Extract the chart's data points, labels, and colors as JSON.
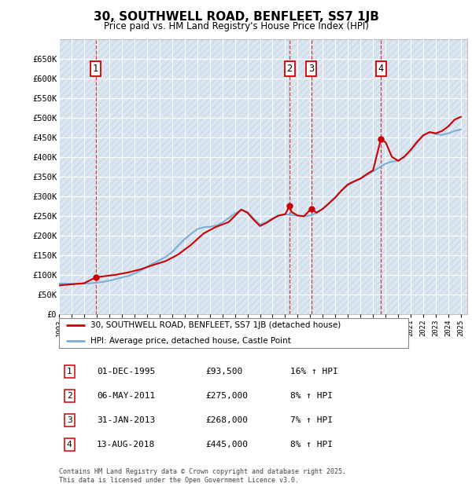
{
  "title": "30, SOUTHWELL ROAD, BENFLEET, SS7 1JB",
  "subtitle": "Price paid vs. HM Land Registry's House Price Index (HPI)",
  "ylim": [
    0,
    700000
  ],
  "yticks": [
    0,
    50000,
    100000,
    150000,
    200000,
    250000,
    300000,
    350000,
    400000,
    450000,
    500000,
    550000,
    600000,
    650000
  ],
  "ytick_labels": [
    "£0",
    "£50K",
    "£100K",
    "£150K",
    "£200K",
    "£250K",
    "£300K",
    "£350K",
    "£400K",
    "£450K",
    "£500K",
    "£550K",
    "£600K",
    "£650K"
  ],
  "background_color": "#dce6f0",
  "hatch_color": "#c8d8e8",
  "grid_color": "#ffffff",
  "sale_line_color": "#cc0000",
  "hpi_line_color": "#7bafd4",
  "sale_marker_color": "#cc0000",
  "transaction_color": "#cc0000",
  "annotations": [
    {
      "num": 1,
      "x_year": 1995.92,
      "y": 93500,
      "label": "1",
      "date": "01-DEC-1995",
      "price": "£93,500",
      "hpi": "16% ↑ HPI"
    },
    {
      "num": 2,
      "x_year": 2011.35,
      "y": 275000,
      "label": "2",
      "date": "06-MAY-2011",
      "price": "£275,000",
      "hpi": "8% ↑ HPI"
    },
    {
      "num": 3,
      "x_year": 2013.08,
      "y": 268000,
      "label": "3",
      "date": "31-JAN-2013",
      "price": "£268,000",
      "hpi": "7% ↑ HPI"
    },
    {
      "num": 4,
      "x_year": 2018.62,
      "y": 445000,
      "label": "4",
      "date": "13-AUG-2018",
      "price": "£445,000",
      "hpi": "8% ↑ HPI"
    }
  ],
  "legend_sale_label": "30, SOUTHWELL ROAD, BENFLEET, SS7 1JB (detached house)",
  "legend_hpi_label": "HPI: Average price, detached house, Castle Point",
  "footer": "Contains HM Land Registry data © Crown copyright and database right 2025.\nThis data is licensed under the Open Government Licence v3.0.",
  "xlim_start": 1993,
  "xlim_end": 2025.5,
  "hpi_data": [
    [
      1993.0,
      78000
    ],
    [
      1993.5,
      77500
    ],
    [
      1994.0,
      77000
    ],
    [
      1994.5,
      77500
    ],
    [
      1995.0,
      78000
    ],
    [
      1995.5,
      78500
    ],
    [
      1996.0,
      80000
    ],
    [
      1996.5,
      82000
    ],
    [
      1997.0,
      85000
    ],
    [
      1997.5,
      89000
    ],
    [
      1998.0,
      93000
    ],
    [
      1998.5,
      97000
    ],
    [
      1999.0,
      103000
    ],
    [
      1999.5,
      111000
    ],
    [
      2000.0,
      120000
    ],
    [
      2000.5,
      129000
    ],
    [
      2001.0,
      137000
    ],
    [
      2001.5,
      146000
    ],
    [
      2002.0,
      158000
    ],
    [
      2002.5,
      175000
    ],
    [
      2003.0,
      191000
    ],
    [
      2003.5,
      204000
    ],
    [
      2004.0,
      216000
    ],
    [
      2004.5,
      221000
    ],
    [
      2005.0,
      222000
    ],
    [
      2005.5,
      225000
    ],
    [
      2006.0,
      233000
    ],
    [
      2006.5,
      244000
    ],
    [
      2007.0,
      256000
    ],
    [
      2007.5,
      265000
    ],
    [
      2008.0,
      260000
    ],
    [
      2008.5,
      243000
    ],
    [
      2009.0,
      228000
    ],
    [
      2009.5,
      234000
    ],
    [
      2010.0,
      244000
    ],
    [
      2010.5,
      251000
    ],
    [
      2011.0,
      254000
    ],
    [
      2011.5,
      253000
    ],
    [
      2012.0,
      250000
    ],
    [
      2012.5,
      249000
    ],
    [
      2013.0,
      251000
    ],
    [
      2013.5,
      258000
    ],
    [
      2014.0,
      268000
    ],
    [
      2014.5,
      282000
    ],
    [
      2015.0,
      297000
    ],
    [
      2015.5,
      314000
    ],
    [
      2016.0,
      328000
    ],
    [
      2016.5,
      337000
    ],
    [
      2017.0,
      344000
    ],
    [
      2017.5,
      354000
    ],
    [
      2018.0,
      363000
    ],
    [
      2018.5,
      373000
    ],
    [
      2019.0,
      383000
    ],
    [
      2019.5,
      388000
    ],
    [
      2020.0,
      390000
    ],
    [
      2020.5,
      400000
    ],
    [
      2021.0,
      416000
    ],
    [
      2021.5,
      436000
    ],
    [
      2022.0,
      454000
    ],
    [
      2022.5,
      463000
    ],
    [
      2023.0,
      458000
    ],
    [
      2023.5,
      456000
    ],
    [
      2024.0,
      460000
    ],
    [
      2024.5,
      466000
    ],
    [
      2025.0,
      470000
    ]
  ],
  "sale_line_data": [
    [
      1993.0,
      73000
    ],
    [
      1994.0,
      76000
    ],
    [
      1995.0,
      78500
    ],
    [
      1995.92,
      93500
    ],
    [
      1996.5,
      96000
    ],
    [
      1997.5,
      100000
    ],
    [
      1998.5,
      106000
    ],
    [
      1999.5,
      114000
    ],
    [
      2000.5,
      125000
    ],
    [
      2001.5,
      135000
    ],
    [
      2002.5,
      152000
    ],
    [
      2003.5,
      176000
    ],
    [
      2004.5,
      205000
    ],
    [
      2005.5,
      222000
    ],
    [
      2006.5,
      234000
    ],
    [
      2007.5,
      266000
    ],
    [
      2008.0,
      258000
    ],
    [
      2008.5,
      240000
    ],
    [
      2009.0,
      224000
    ],
    [
      2009.5,
      232000
    ],
    [
      2010.0,
      242000
    ],
    [
      2010.5,
      251000
    ],
    [
      2011.0,
      254000
    ],
    [
      2011.35,
      275000
    ],
    [
      2011.5,
      260000
    ],
    [
      2012.0,
      251000
    ],
    [
      2012.5,
      249000
    ],
    [
      2013.08,
      268000
    ],
    [
      2013.5,
      258000
    ],
    [
      2014.0,
      268000
    ],
    [
      2014.5,
      282000
    ],
    [
      2015.0,
      297000
    ],
    [
      2015.5,
      315000
    ],
    [
      2016.0,
      330000
    ],
    [
      2016.5,
      338000
    ],
    [
      2017.0,
      345000
    ],
    [
      2017.5,
      356000
    ],
    [
      2018.0,
      366000
    ],
    [
      2018.62,
      445000
    ],
    [
      2019.0,
      437000
    ],
    [
      2019.5,
      400000
    ],
    [
      2020.0,
      390000
    ],
    [
      2020.5,
      401000
    ],
    [
      2021.0,
      418000
    ],
    [
      2021.5,
      438000
    ],
    [
      2022.0,
      455000
    ],
    [
      2022.5,
      463000
    ],
    [
      2023.0,
      460000
    ],
    [
      2023.5,
      466000
    ],
    [
      2024.0,
      478000
    ],
    [
      2024.5,
      495000
    ],
    [
      2025.0,
      502000
    ]
  ]
}
